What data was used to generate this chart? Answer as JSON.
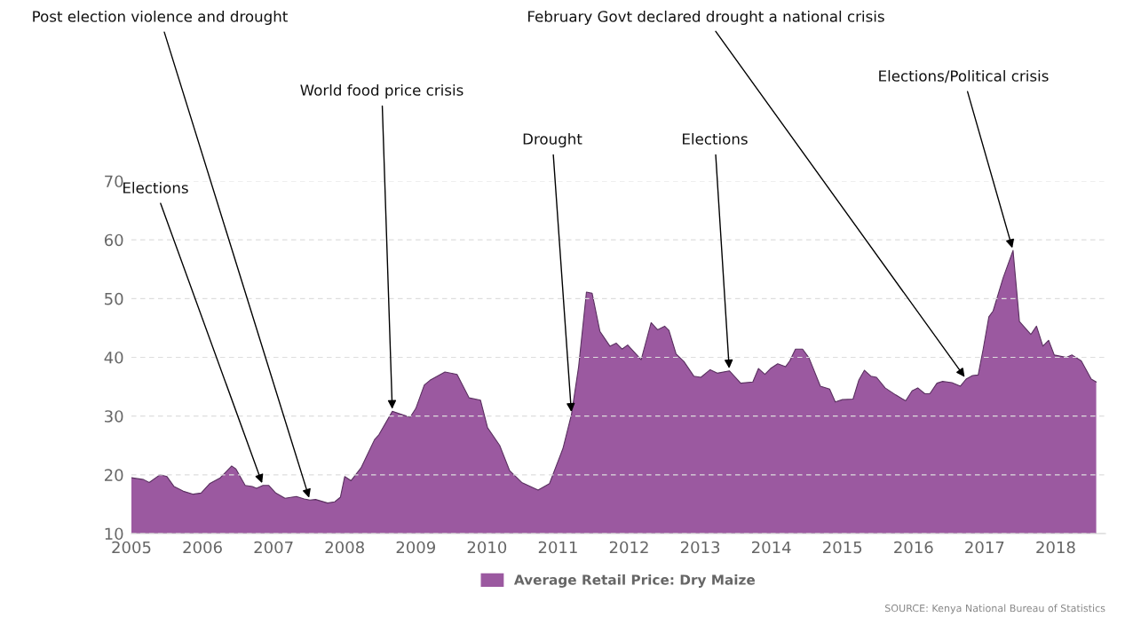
{
  "chart_data": {
    "type": "area",
    "x": [
      2005.0,
      2005.17,
      2005.25,
      2005.4,
      2005.5,
      2005.6,
      2005.73,
      2005.87,
      2005.98,
      2006.1,
      2006.25,
      2006.41,
      2006.47,
      2006.6,
      2006.7,
      2006.76,
      2006.85,
      2006.93,
      2007.03,
      2007.16,
      2007.26,
      2007.32,
      2007.43,
      2007.51,
      2007.59,
      2007.76,
      2007.86,
      2007.94,
      2008.0,
      2008.09,
      2008.23,
      2008.42,
      2008.48,
      2008.67,
      2008.92,
      2009.0,
      2009.12,
      2009.2,
      2009.41,
      2009.58,
      2009.75,
      2009.91,
      2010.01,
      2010.18,
      2010.32,
      2010.49,
      2010.72,
      2010.88,
      2011.07,
      2011.19,
      2011.29,
      2011.4,
      2011.48,
      2011.59,
      2011.73,
      2011.82,
      2011.9,
      2011.98,
      2012.17,
      2012.31,
      2012.4,
      2012.5,
      2012.56,
      2012.66,
      2012.77,
      2012.91,
      2013.01,
      2013.14,
      2013.24,
      2013.41,
      2013.57,
      2013.74,
      2013.82,
      2013.91,
      2013.99,
      2014.09,
      2014.2,
      2014.26,
      2014.34,
      2014.44,
      2014.53,
      2014.69,
      2014.82,
      2014.9,
      2015.0,
      2015.15,
      2015.23,
      2015.31,
      2015.4,
      2015.48,
      2015.6,
      2015.75,
      2015.89,
      2015.98,
      2016.06,
      2016.16,
      2016.23,
      2016.33,
      2016.41,
      2016.54,
      2016.66,
      2016.74,
      2016.83,
      2016.91,
      2016.98,
      2017.06,
      2017.12,
      2017.26,
      2017.4,
      2017.49,
      2017.65,
      2017.73,
      2017.82,
      2017.9,
      2017.98,
      2018.15,
      2018.23,
      2018.36,
      2018.5,
      2018.57
    ],
    "series": [
      {
        "name": "Average Retail Price: Dry Maize",
        "color": "#9b59a0",
        "values": [
          19.5,
          19.2,
          18.7,
          20.0,
          19.7,
          18.0,
          17.2,
          16.7,
          16.9,
          18.5,
          19.5,
          21.5,
          21.0,
          18.2,
          18.0,
          17.7,
          18.2,
          18.2,
          16.9,
          16.0,
          16.2,
          16.3,
          15.9,
          15.7,
          15.8,
          15.2,
          15.4,
          16.2,
          19.7,
          19.0,
          21.2,
          26.0,
          26.8,
          30.8,
          29.8,
          31.3,
          35.3,
          36.1,
          37.5,
          37.1,
          33.1,
          32.7,
          28.0,
          25.0,
          20.7,
          18.7,
          17.4,
          18.5,
          24.5,
          30.3,
          38.4,
          51.1,
          50.9,
          44.4,
          41.9,
          42.4,
          41.4,
          42.1,
          39.6,
          45.9,
          44.7,
          45.3,
          44.6,
          40.6,
          39.3,
          36.8,
          36.6,
          37.9,
          37.3,
          37.7,
          35.6,
          35.8,
          38.1,
          37.1,
          38.1,
          38.9,
          38.4,
          39.4,
          41.4,
          41.4,
          39.9,
          35.1,
          34.6,
          32.4,
          32.8,
          32.9,
          36.1,
          37.8,
          36.8,
          36.6,
          34.8,
          33.6,
          32.6,
          34.3,
          34.8,
          33.8,
          33.8,
          35.6,
          35.9,
          35.7,
          35.1,
          36.3,
          36.9,
          37.0,
          41.4,
          46.9,
          47.9,
          53.5,
          58.2,
          46.1,
          43.9,
          45.3,
          41.9,
          42.9,
          40.4,
          40.0,
          40.4,
          39.4,
          36.3,
          35.8
        ]
      }
    ],
    "xlim": [
      2005,
      2018.7
    ],
    "xticks": [
      2005,
      2006,
      2007,
      2008,
      2009,
      2010,
      2011,
      2012,
      2013,
      2014,
      2015,
      2016,
      2017,
      2018
    ],
    "ylim": [
      10,
      70
    ],
    "yticks": [
      10,
      20,
      30,
      40,
      50,
      60,
      70
    ],
    "grid": "y",
    "legend": "bottom",
    "annotations": [
      {
        "text": "Elections",
        "x": 2006.85,
        "y": 18.2
      },
      {
        "text": "Post election violence and drought",
        "x": 2007.51,
        "y": 15.7
      },
      {
        "text": "World food price crisis",
        "x": 2008.67,
        "y": 30.8
      },
      {
        "text": "Drought",
        "x": 2011.19,
        "y": 30.3
      },
      {
        "text": "Elections",
        "x": 2013.41,
        "y": 37.7
      },
      {
        "text": "February Govt declared drought a national crisis",
        "x": 2016.74,
        "y": 36.3
      },
      {
        "text": "Elections/Political crisis",
        "x": 2017.4,
        "y": 58.2
      },
      "SOURCE: Kenya National Bureau of Statistics"
    ]
  }
}
